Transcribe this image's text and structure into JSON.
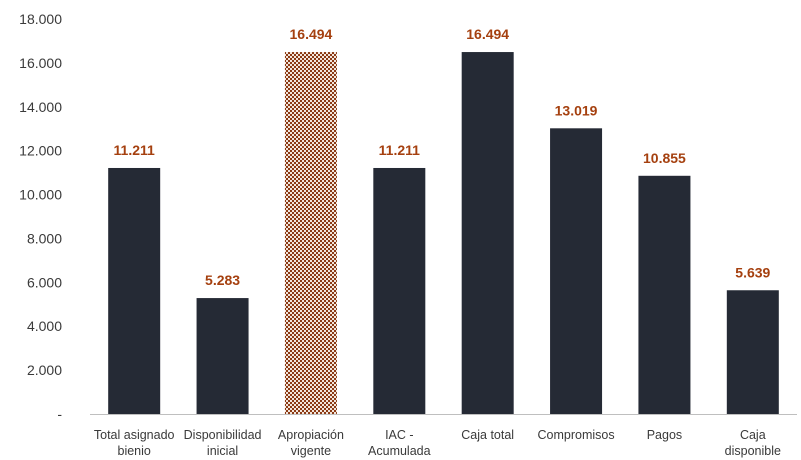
{
  "chart_data": {
    "type": "bar",
    "title": "",
    "xlabel": "",
    "ylabel": "",
    "ylim": [
      0,
      18000
    ],
    "ytick_step": 2000,
    "ytick_labels": [
      "-",
      "2.000",
      "4.000",
      "6.000",
      "8.000",
      "10.000",
      "12.000",
      "14.000",
      "16.000",
      "18.000"
    ],
    "grid": false,
    "legend": "none",
    "categories": [
      [
        "Total asignado",
        "bienio"
      ],
      [
        "Disponibilidad",
        "inicial"
      ],
      [
        "Apropiación",
        "vigente"
      ],
      [
        "IAC -",
        "Acumulada"
      ],
      [
        "Caja total"
      ],
      [
        "Compromisos"
      ],
      [
        "Pagos"
      ],
      [
        "Caja",
        "disponible"
      ]
    ],
    "values": [
      11211,
      5283,
      16494,
      11211,
      16494,
      13019,
      10855,
      5639
    ],
    "data_labels": [
      "11.211",
      "5.283",
      "16.494",
      "11.211",
      "16.494",
      "13.019",
      "10.855",
      "5.639"
    ],
    "bar_styles": [
      "solid",
      "solid",
      "hatched",
      "solid",
      "solid",
      "solid",
      "solid",
      "solid"
    ],
    "colors": {
      "bar": "#252a35",
      "hatch_fg": "#8b3a14",
      "hatch_bg": "#f3e6dc",
      "data_label": "#a5400f",
      "axis": "#bfbfbf",
      "tick_text": "#3a3a3a"
    }
  }
}
